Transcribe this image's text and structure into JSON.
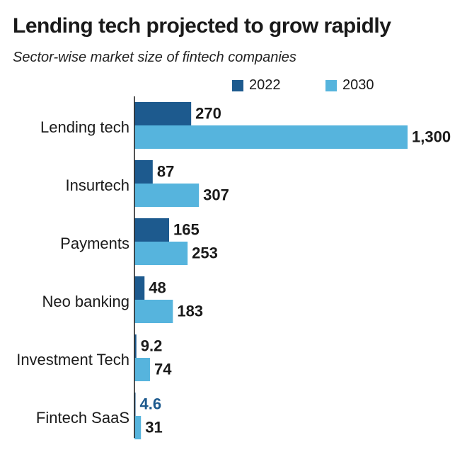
{
  "chart_data": {
    "type": "bar",
    "orientation": "horizontal",
    "title": "Lending tech projected to grow rapidly",
    "subtitle": "Sector-wise market size of fintech companies",
    "xlabel": "",
    "ylabel": "",
    "categories": [
      "Lending tech",
      "Insurtech",
      "Payments",
      "Neo banking",
      "Investment Tech",
      "Fintech SaaS"
    ],
    "series": [
      {
        "name": "2022",
        "color": "#1d5a8e",
        "values": [
          270,
          87,
          165,
          48,
          9.2,
          4.6
        ],
        "labels": [
          "270",
          "87",
          "165",
          "48",
          "9.2",
          "4.6"
        ]
      },
      {
        "name": "2030",
        "color": "#56b4dd",
        "values": [
          1300,
          307,
          253,
          183,
          74,
          31
        ],
        "labels": [
          "1,300",
          "307",
          "253",
          "183",
          "74",
          "31"
        ]
      }
    ],
    "xlim": [
      0,
      1300
    ],
    "grid": false,
    "legend_position": "top"
  }
}
